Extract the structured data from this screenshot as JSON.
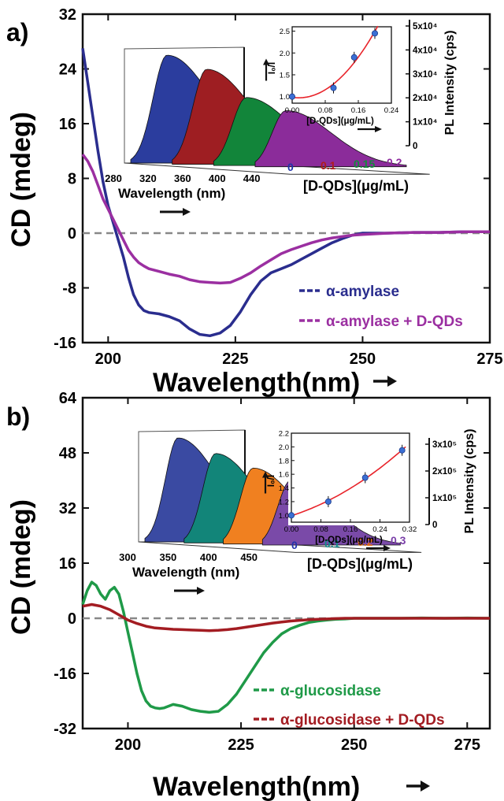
{
  "chart_data": [
    {
      "panel_label": "a)",
      "type": "line",
      "xlabel": "Wavelength(nm)",
      "ylabel": "CD (mdeg)",
      "xlim": [
        195,
        275
      ],
      "ylim": [
        -16,
        32
      ],
      "x_ticks": [
        200,
        225,
        250,
        275
      ],
      "y_ticks": [
        -16,
        -8,
        0,
        8,
        16,
        24,
        32
      ],
      "zero_line": "dashed",
      "legend_position": "bottom-right",
      "series": [
        {
          "name": "α-amylase",
          "color": "#2a2d8e",
          "points": [
            [
              195,
              27
            ],
            [
              196,
              22
            ],
            [
              197,
              17
            ],
            [
              198,
              12
            ],
            [
              199,
              7.5
            ],
            [
              200,
              4
            ],
            [
              201,
              1.5
            ],
            [
              202,
              -1
            ],
            [
              203,
              -3.5
            ],
            [
              204,
              -6.5
            ],
            [
              205,
              -9
            ],
            [
              206,
              -10.5
            ],
            [
              207,
              -11.3
            ],
            [
              208,
              -11.6
            ],
            [
              210,
              -11.8
            ],
            [
              212,
              -12.2
            ],
            [
              214,
              -12.8
            ],
            [
              216,
              -14
            ],
            [
              218,
              -14.8
            ],
            [
              220,
              -15
            ],
            [
              222,
              -14.6
            ],
            [
              224,
              -13.5
            ],
            [
              226,
              -11.5
            ],
            [
              228,
              -9
            ],
            [
              230,
              -7
            ],
            [
              232,
              -5.8
            ],
            [
              234,
              -5.2
            ],
            [
              236,
              -4.6
            ],
            [
              238,
              -3.8
            ],
            [
              240,
              -3
            ],
            [
              242,
              -2.2
            ],
            [
              244,
              -1.4
            ],
            [
              246,
              -0.8
            ],
            [
              248,
              -0.3
            ],
            [
              250,
              0
            ],
            [
              255,
              0
            ],
            [
              260,
              0.1
            ],
            [
              265,
              0.1
            ],
            [
              270,
              0.2
            ],
            [
              275,
              0.2
            ]
          ]
        },
        {
          "name": "α-amylase + D-QDs",
          "color": "#9b2fa1",
          "points": [
            [
              195,
              11.5
            ],
            [
              196,
              10.5
            ],
            [
              197,
              9
            ],
            [
              198,
              7
            ],
            [
              199,
              5
            ],
            [
              200,
              3.5
            ],
            [
              201,
              2
            ],
            [
              202,
              0.5
            ],
            [
              203,
              -1
            ],
            [
              204,
              -2.5
            ],
            [
              205,
              -3.5
            ],
            [
              206,
              -4.3
            ],
            [
              207,
              -4.8
            ],
            [
              208,
              -5.2
            ],
            [
              210,
              -5.6
            ],
            [
              212,
              -6
            ],
            [
              214,
              -6.3
            ],
            [
              216,
              -6.8
            ],
            [
              218,
              -7.1
            ],
            [
              220,
              -7.2
            ],
            [
              222,
              -7.3
            ],
            [
              224,
              -7.2
            ],
            [
              226,
              -6.6
            ],
            [
              228,
              -5.8
            ],
            [
              230,
              -4.8
            ],
            [
              232,
              -3.9
            ],
            [
              234,
              -3
            ],
            [
              236,
              -2.4
            ],
            [
              238,
              -1.9
            ],
            [
              240,
              -1.4
            ],
            [
              242,
              -1
            ],
            [
              244,
              -0.7
            ],
            [
              246,
              -0.5
            ],
            [
              248,
              -0.3
            ],
            [
              250,
              -0.2
            ],
            [
              255,
              0
            ],
            [
              260,
              0.1
            ],
            [
              265,
              0.1
            ],
            [
              270,
              0.2
            ],
            [
              275,
              0.2
            ]
          ]
        }
      ],
      "inset_pl": {
        "x_ticks": [
          "280",
          "320",
          "360",
          "400",
          "440"
        ],
        "xlabel": "Wavelength (nm)",
        "depth_label": "[D-QDs](μg/mL)",
        "depth_ticks": [
          {
            "label": "0",
            "color": "#2233aa"
          },
          {
            "label": "0.1",
            "color": "#b01c1c"
          },
          {
            "label": "0.15",
            "color": "#138a3c"
          },
          {
            "label": "0.2",
            "color": "#8e2a9e"
          }
        ],
        "ylabel": "PL Intensity (cps)",
        "y_ticks": [
          "0",
          "1x10⁴",
          "2x10⁴",
          "3x10⁴",
          "4x10⁴",
          "5x10⁴"
        ],
        "peaks": [
          {
            "color": "#2b3d9e",
            "level": 1.0
          },
          {
            "color": "#9e1e22",
            "level": 0.88
          },
          {
            "color": "#12853a",
            "level": 0.63
          },
          {
            "color": "#8b2c9a",
            "level": 0.52
          }
        ]
      },
      "inset_quench": {
        "xlabel": "[D-QDs](μg/mL)",
        "ylabel": "I₀/I",
        "x_ticks": [
          "0.00",
          "0.08",
          "0.16",
          "0.24"
        ],
        "y_ticks": [
          "1.0",
          "1.5",
          "2.0",
          "2.5"
        ],
        "xlim": [
          0,
          0.24
        ],
        "ylim": [
          0.85,
          2.6
        ],
        "points": [
          [
            0,
            1.0
          ],
          [
            0.1,
            1.2
          ],
          [
            0.15,
            1.9
          ],
          [
            0.2,
            2.45
          ]
        ],
        "fit_color": "#e8232a"
      }
    },
    {
      "panel_label": "b)",
      "type": "line",
      "xlabel": "Wavelength(nm)",
      "ylabel": "CD (mdeg)",
      "xlim": [
        190,
        280
      ],
      "ylim": [
        -32,
        64
      ],
      "x_ticks": [
        200,
        225,
        250,
        275
      ],
      "y_ticks": [
        -32,
        -16,
        0,
        16,
        32,
        48,
        64
      ],
      "zero_line": "dashed",
      "legend_position": "bottom-right",
      "series": [
        {
          "name": "α-glucosidase",
          "color": "#1f9a48",
          "points": [
            [
              190,
              4
            ],
            [
              191,
              8
            ],
            [
              192,
              10.5
            ],
            [
              193,
              9.5
            ],
            [
              194,
              7
            ],
            [
              195,
              5.5
            ],
            [
              196,
              8
            ],
            [
              197,
              9
            ],
            [
              198,
              7
            ],
            [
              199,
              2
            ],
            [
              200,
              -4
            ],
            [
              201,
              -10
            ],
            [
              202,
              -16
            ],
            [
              203,
              -21
            ],
            [
              204,
              -24
            ],
            [
              205,
              -25.5
            ],
            [
              206,
              -26
            ],
            [
              207,
              -26.2
            ],
            [
              208,
              -26
            ],
            [
              210,
              -25
            ],
            [
              212,
              -25.5
            ],
            [
              214,
              -26.5
            ],
            [
              216,
              -27
            ],
            [
              218,
              -27.3
            ],
            [
              220,
              -27
            ],
            [
              222,
              -25
            ],
            [
              224,
              -22
            ],
            [
              226,
              -18
            ],
            [
              228,
              -14
            ],
            [
              230,
              -10
            ],
            [
              232,
              -7
            ],
            [
              234,
              -4.5
            ],
            [
              236,
              -3
            ],
            [
              238,
              -2
            ],
            [
              240,
              -1.2
            ],
            [
              242,
              -0.8
            ],
            [
              244,
              -0.5
            ],
            [
              246,
              -0.3
            ],
            [
              248,
              -0.2
            ],
            [
              250,
              0
            ],
            [
              255,
              0
            ],
            [
              260,
              0
            ],
            [
              265,
              0.1
            ],
            [
              270,
              0
            ],
            [
              275,
              0.1
            ],
            [
              280,
              0
            ]
          ]
        },
        {
          "name": "α-glucosidase + D-QDs",
          "color": "#a31c22",
          "points": [
            [
              190,
              3.5
            ],
            [
              192,
              4
            ],
            [
              194,
              3.5
            ],
            [
              196,
              2.5
            ],
            [
              198,
              1
            ],
            [
              200,
              -0.5
            ],
            [
              202,
              -1.5
            ],
            [
              204,
              -2.3
            ],
            [
              206,
              -2.8
            ],
            [
              208,
              -3
            ],
            [
              210,
              -3.2
            ],
            [
              212,
              -3.3
            ],
            [
              214,
              -3.4
            ],
            [
              216,
              -3.5
            ],
            [
              218,
              -3.6
            ],
            [
              220,
              -3.5
            ],
            [
              222,
              -3.3
            ],
            [
              224,
              -3
            ],
            [
              226,
              -2.6
            ],
            [
              228,
              -2.2
            ],
            [
              230,
              -1.8
            ],
            [
              232,
              -1.4
            ],
            [
              234,
              -1.1
            ],
            [
              236,
              -0.8
            ],
            [
              238,
              -0.6
            ],
            [
              240,
              -0.4
            ],
            [
              242,
              -0.3
            ],
            [
              244,
              -0.2
            ],
            [
              246,
              -0.1
            ],
            [
              248,
              0
            ],
            [
              250,
              0
            ],
            [
              255,
              0
            ],
            [
              260,
              0
            ],
            [
              265,
              0
            ],
            [
              270,
              0
            ],
            [
              275,
              0
            ],
            [
              280,
              0
            ]
          ]
        }
      ],
      "inset_pl": {
        "x_ticks": [
          "300",
          "350",
          "400",
          "450"
        ],
        "xlabel": "Wavelength (nm)",
        "depth_label": "[D-QDs](μg/mL)",
        "depth_ticks": [
          {
            "label": "0",
            "color": "#2233aa"
          },
          {
            "label": "0.1",
            "color": "#138a8a"
          },
          {
            "label": "0.2",
            "color": "#e46a12"
          },
          {
            "label": "0.3",
            "color": "#7a3fa8"
          }
        ],
        "ylabel": "PL Intensity (cps)",
        "y_ticks": [
          "0",
          "1x10⁵",
          "2x10⁵",
          "3x10⁵"
        ],
        "peaks": [
          {
            "color": "#3a4aa2",
            "level": 1.0
          },
          {
            "color": "#128579",
            "level": 0.86
          },
          {
            "color": "#f08020",
            "level": 0.73
          },
          {
            "color": "#7a4aa8",
            "level": 0.62
          }
        ]
      },
      "inset_quench": {
        "xlabel": "[D-QDs](μg/mL)",
        "ylabel": "I₀/I",
        "x_ticks": [
          "0.00",
          "0.08",
          "0.16",
          "0.24",
          "0.32"
        ],
        "y_ticks": [
          "1.0",
          "1.2",
          "1.4",
          "1.6",
          "1.8",
          "2.0",
          "2.2"
        ],
        "xlim": [
          0,
          0.32
        ],
        "ylim": [
          0.9,
          2.2
        ],
        "points": [
          [
            0,
            1.0
          ],
          [
            0.1,
            1.2
          ],
          [
            0.2,
            1.55
          ],
          [
            0.3,
            1.95
          ]
        ],
        "fit_color": "#e8232a"
      }
    }
  ]
}
